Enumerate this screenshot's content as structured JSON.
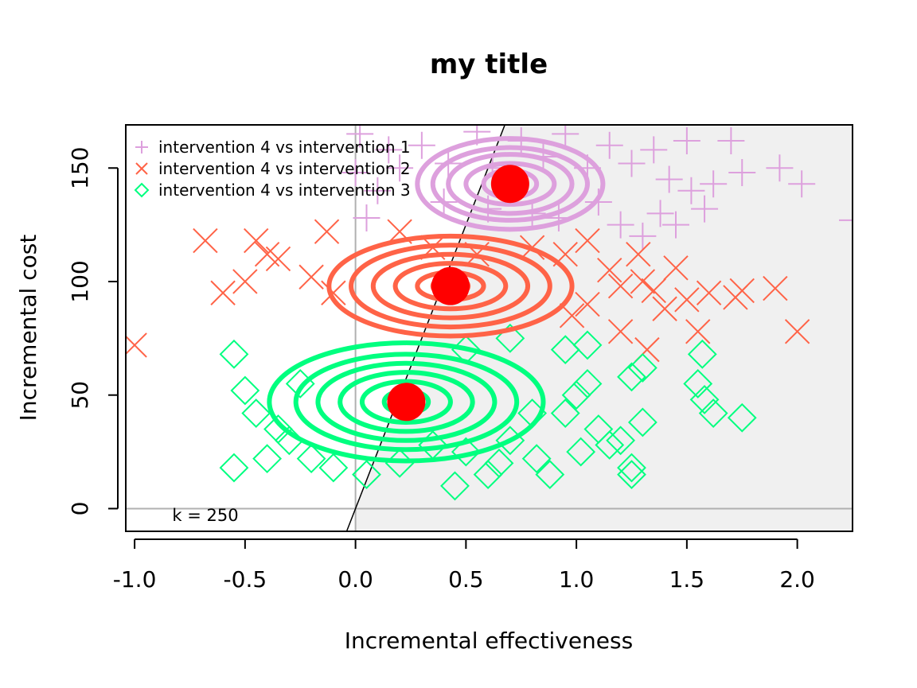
{
  "chart_data": {
    "type": "scatter",
    "title": "my title",
    "xlabel": "Incremental effectiveness",
    "ylabel": "Incremental cost",
    "xlim": [
      -1.04,
      2.25
    ],
    "ylim": [
      -10,
      169
    ],
    "xticks": [
      -1.0,
      -0.5,
      0.0,
      0.5,
      1.0,
      1.5,
      2.0
    ],
    "xtick_labels": [
      "-1.0",
      "-0.5",
      "0.0",
      "0.5",
      "1.0",
      "1.5",
      "2.0"
    ],
    "yticks": [
      0,
      50,
      100,
      150
    ],
    "ytick_labels": [
      "0",
      "50",
      "100",
      "150"
    ],
    "wtp_label": "k = 250",
    "wtp_value": 250,
    "ce_region": "shaded grey area right of the willingness-to-pay line",
    "legend_position": "top-left",
    "series": [
      {
        "name": "intervention 4 vs intervention 1",
        "marker": "plus",
        "color": "#dda0dd",
        "mean": [
          0.7,
          143
        ],
        "points": [
          [
            0.02,
            165
          ],
          [
            0.15,
            158
          ],
          [
            0.3,
            160
          ],
          [
            0.42,
            152
          ],
          [
            0.55,
            166
          ],
          [
            0.62,
            150
          ],
          [
            0.75,
            162
          ],
          [
            0.85,
            155
          ],
          [
            0.95,
            165
          ],
          [
            1.05,
            150
          ],
          [
            1.15,
            160
          ],
          [
            1.25,
            152
          ],
          [
            1.35,
            158
          ],
          [
            1.5,
            162
          ],
          [
            1.7,
            162
          ],
          [
            1.38,
            130
          ],
          [
            1.45,
            125
          ],
          [
            1.52,
            140
          ],
          [
            1.62,
            143
          ],
          [
            1.75,
            148
          ],
          [
            1.92,
            150
          ],
          [
            2.02,
            143
          ],
          [
            2.25,
            127
          ],
          [
            1.1,
            135
          ],
          [
            0.92,
            128
          ],
          [
            0.8,
            130
          ],
          [
            0.2,
            150
          ],
          [
            0.1,
            140
          ],
          [
            0.05,
            128
          ],
          [
            0.0,
            148
          ],
          [
            1.3,
            120
          ],
          [
            1.2,
            125
          ],
          [
            1.58,
            132
          ],
          [
            1.42,
            145
          ],
          [
            0.4,
            135
          ],
          [
            0.6,
            132
          ]
        ]
      },
      {
        "name": "intervention 4 vs intervention 2",
        "marker": "x",
        "color": "#ff6347",
        "mean": [
          0.43,
          98
        ],
        "points": [
          [
            -1.0,
            72
          ],
          [
            -0.68,
            118
          ],
          [
            -0.6,
            95
          ],
          [
            -0.5,
            100
          ],
          [
            -0.45,
            118
          ],
          [
            -0.4,
            112
          ],
          [
            -0.35,
            110
          ],
          [
            -0.2,
            102
          ],
          [
            -0.1,
            95
          ],
          [
            -0.13,
            122
          ],
          [
            0.2,
            122
          ],
          [
            0.35,
            115
          ],
          [
            0.55,
            112
          ],
          [
            0.8,
            115
          ],
          [
            0.95,
            112
          ],
          [
            1.05,
            118
          ],
          [
            1.15,
            105
          ],
          [
            1.2,
            98
          ],
          [
            1.3,
            100
          ],
          [
            1.35,
            96
          ],
          [
            1.4,
            88
          ],
          [
            1.45,
            106
          ],
          [
            1.55,
            78
          ],
          [
            1.6,
            95
          ],
          [
            1.72,
            93
          ],
          [
            1.75,
            96
          ],
          [
            1.9,
            97
          ],
          [
            2.0,
            78
          ],
          [
            1.32,
            70
          ],
          [
            1.2,
            78
          ],
          [
            1.05,
            90
          ],
          [
            0.98,
            85
          ],
          [
            1.28,
            112
          ],
          [
            1.5,
            92
          ]
        ]
      },
      {
        "name": "intervention 4 vs intervention 3",
        "marker": "diamond",
        "color": "#00ff7f",
        "mean": [
          0.23,
          47
        ],
        "points": [
          [
            -0.55,
            68
          ],
          [
            -0.5,
            52
          ],
          [
            -0.45,
            42
          ],
          [
            -0.4,
            22
          ],
          [
            -0.55,
            18
          ],
          [
            -0.3,
            30
          ],
          [
            -0.2,
            22
          ],
          [
            -0.1,
            18
          ],
          [
            0.05,
            15
          ],
          [
            0.2,
            20
          ],
          [
            0.35,
            28
          ],
          [
            0.45,
            10
          ],
          [
            0.5,
            25
          ],
          [
            0.6,
            15
          ],
          [
            0.65,
            20
          ],
          [
            0.7,
            30
          ],
          [
            0.8,
            42
          ],
          [
            0.82,
            22
          ],
          [
            0.88,
            15
          ],
          [
            0.95,
            42
          ],
          [
            1.0,
            50
          ],
          [
            1.05,
            55
          ],
          [
            1.02,
            25
          ],
          [
            1.1,
            35
          ],
          [
            1.15,
            28
          ],
          [
            1.2,
            30
          ],
          [
            1.25,
            58
          ],
          [
            1.3,
            38
          ],
          [
            1.25,
            15
          ],
          [
            1.25,
            18
          ],
          [
            1.3,
            62
          ],
          [
            1.55,
            55
          ],
          [
            1.58,
            48
          ],
          [
            1.62,
            42
          ],
          [
            1.75,
            40
          ],
          [
            1.57,
            68
          ],
          [
            0.5,
            70
          ],
          [
            0.7,
            75
          ],
          [
            0.95,
            70
          ],
          [
            1.05,
            72
          ],
          [
            -0.35,
            35
          ],
          [
            -0.25,
            55
          ]
        ]
      }
    ],
    "contours": [
      {
        "series": 0,
        "rings": [
          [
            0.42,
            0.2
          ],
          [
            0.35,
            0.16
          ],
          [
            0.28,
            0.13
          ],
          [
            0.2,
            0.09
          ],
          [
            0.12,
            0.06
          ],
          [
            0.06,
            0.04
          ]
        ]
      },
      {
        "series": 1,
        "rings": [
          [
            0.55,
            0.22
          ],
          [
            0.45,
            0.18
          ],
          [
            0.35,
            0.14
          ],
          [
            0.25,
            0.1
          ],
          [
            0.15,
            0.06
          ],
          [
            0.08,
            0.04
          ]
        ]
      },
      {
        "series": 2,
        "rings": [
          [
            0.62,
            0.26
          ],
          [
            0.5,
            0.21
          ],
          [
            0.4,
            0.17
          ],
          [
            0.3,
            0.13
          ],
          [
            0.2,
            0.09
          ],
          [
            0.1,
            0.05
          ]
        ]
      }
    ]
  }
}
